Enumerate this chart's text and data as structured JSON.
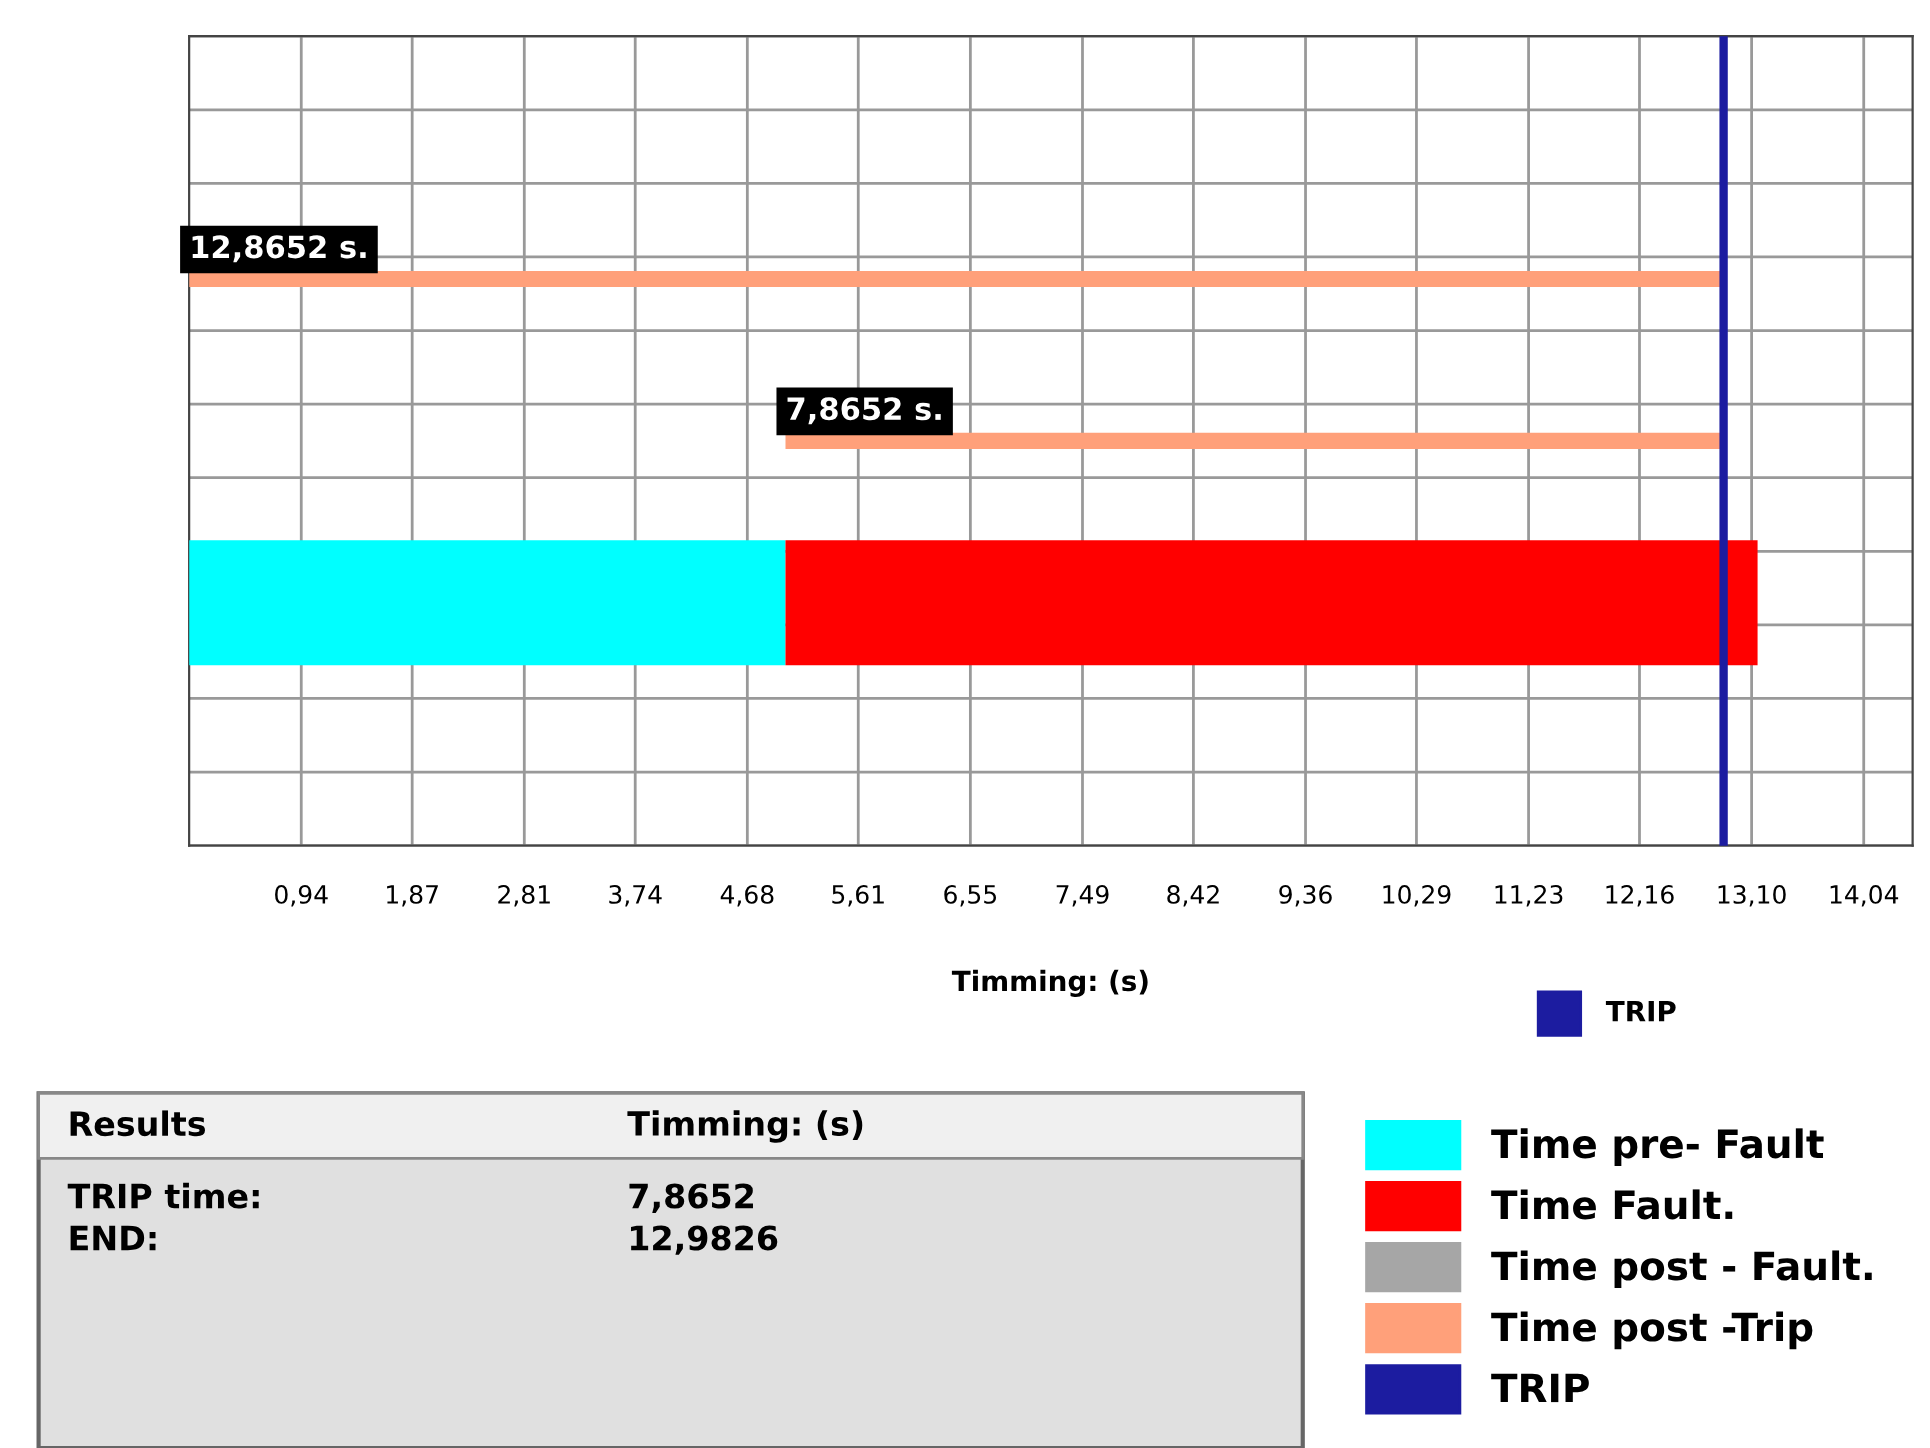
{
  "chart_data": {
    "type": "bar",
    "orientation": "horizontal",
    "xlabel": "Timming: (s)",
    "categories": [
      null,
      null,
      null,
      null,
      null
    ],
    "series": [
      {
        "name": "Time pre- Fault",
        "color": "#00ffff",
        "values": [
          null,
          null,
          null,
          5.0,
          null
        ]
      },
      {
        "name": "Time Fault.",
        "color": "#ff0000",
        "base": [
          null,
          null,
          null,
          5.0,
          null
        ],
        "values": [
          null,
          null,
          null,
          8.15,
          null
        ]
      },
      {
        "name": "Time post - Fault.",
        "color": "#a6a6a6",
        "values": [
          null,
          null,
          null,
          null,
          null
        ]
      },
      {
        "name": "Time post -Trip",
        "color": "#ffa07a",
        "base": [
          null,
          null,
          5.0,
          null,
          null
        ],
        "values": [
          null,
          12.8652,
          7.8652,
          null,
          null
        ],
        "value_labels": [
          null,
          "12,8652 s.",
          "7,8652 s.",
          null,
          null
        ]
      }
    ],
    "ref_lines": [
      {
        "axis": "x",
        "value": 12.8652,
        "label": "TRIP",
        "color": "#1c1ca0"
      }
    ],
    "xlim": [
      0,
      14.45
    ],
    "xticks": [
      {
        "value": 0.94,
        "label": "0,94"
      },
      {
        "value": 1.87,
        "label": "1,87"
      },
      {
        "value": 2.81,
        "label": "2,81"
      },
      {
        "value": 3.74,
        "label": "3,74"
      },
      {
        "value": 4.68,
        "label": "4,68"
      },
      {
        "value": 5.61,
        "label": "5,61"
      },
      {
        "value": 6.55,
        "label": "6,55"
      },
      {
        "value": 7.49,
        "label": "7,49"
      },
      {
        "value": 8.42,
        "label": "8,42"
      },
      {
        "value": 9.36,
        "label": "9,36"
      },
      {
        "value": 10.29,
        "label": "10,29"
      },
      {
        "value": 11.23,
        "label": "11,23"
      },
      {
        "value": 12.16,
        "label": "12,16"
      },
      {
        "value": 13.1,
        "label": "13,10"
      },
      {
        "value": 14.04,
        "label": "14,04"
      }
    ],
    "tick_labels": "x",
    "grid": true,
    "legend": "bottom right",
    "annotations": [
      "TRIP",
      "Results",
      "Timming: (s)",
      "TRIP time:",
      "7,8652",
      "END:",
      "12,9826"
    ]
  }
}
